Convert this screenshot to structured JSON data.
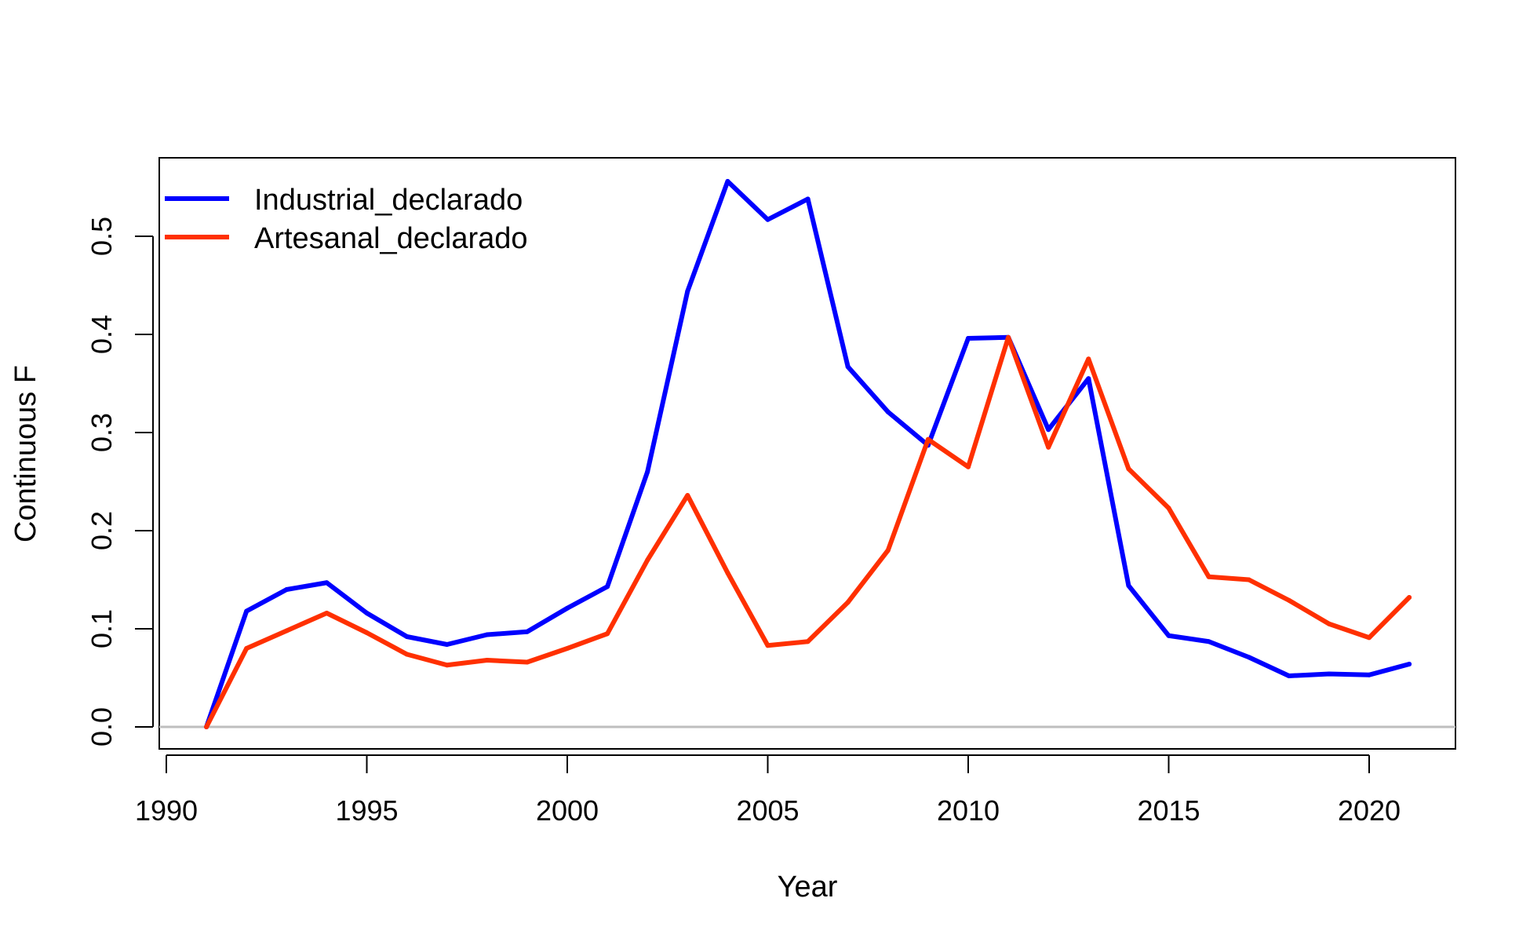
{
  "chart_data": {
    "type": "line",
    "xlabel": "Year",
    "ylabel": "Continuous F",
    "xlim": [
      1990,
      2022
    ],
    "ylim": [
      0,
      0.55
    ],
    "x_ticks": [
      1990,
      1995,
      2000,
      2005,
      2010,
      2015,
      2020
    ],
    "y_ticks": [
      "0.0",
      "0.1",
      "0.2",
      "0.3",
      "0.4",
      "0.5"
    ],
    "reference_line": {
      "y": 0,
      "color": "#bebebe"
    },
    "legend_position": "top-left",
    "x": [
      1991,
      1992,
      1993,
      1994,
      1995,
      1996,
      1997,
      1998,
      1999,
      2000,
      2001,
      2002,
      2003,
      2004,
      2005,
      2006,
      2007,
      2008,
      2009,
      2010,
      2011,
      2012,
      2013,
      2014,
      2015,
      2016,
      2017,
      2018,
      2019,
      2020,
      2021
    ],
    "series": [
      {
        "name": "Industrial_declarado",
        "color": "#0000ff",
        "values": [
          0.0,
          0.118,
          0.14,
          0.147,
          0.116,
          0.092,
          0.084,
          0.094,
          0.097,
          0.121,
          0.143,
          0.26,
          0.444,
          0.556,
          0.517,
          0.538,
          0.367,
          0.321,
          0.287,
          0.396,
          0.397,
          0.303,
          0.355,
          0.144,
          0.093,
          0.087,
          0.071,
          0.052,
          0.054,
          0.053,
          0.064
        ]
      },
      {
        "name": "Artesanal_declarado",
        "color": "#ff3000",
        "values": [
          0.0,
          0.08,
          0.098,
          0.116,
          0.096,
          0.074,
          0.063,
          0.068,
          0.066,
          0.08,
          0.095,
          0.17,
          0.236,
          0.157,
          0.083,
          0.087,
          0.127,
          0.18,
          0.293,
          0.265,
          0.397,
          0.285,
          0.375,
          0.263,
          0.223,
          0.153,
          0.15,
          0.129,
          0.105,
          0.091,
          0.132
        ]
      }
    ]
  }
}
